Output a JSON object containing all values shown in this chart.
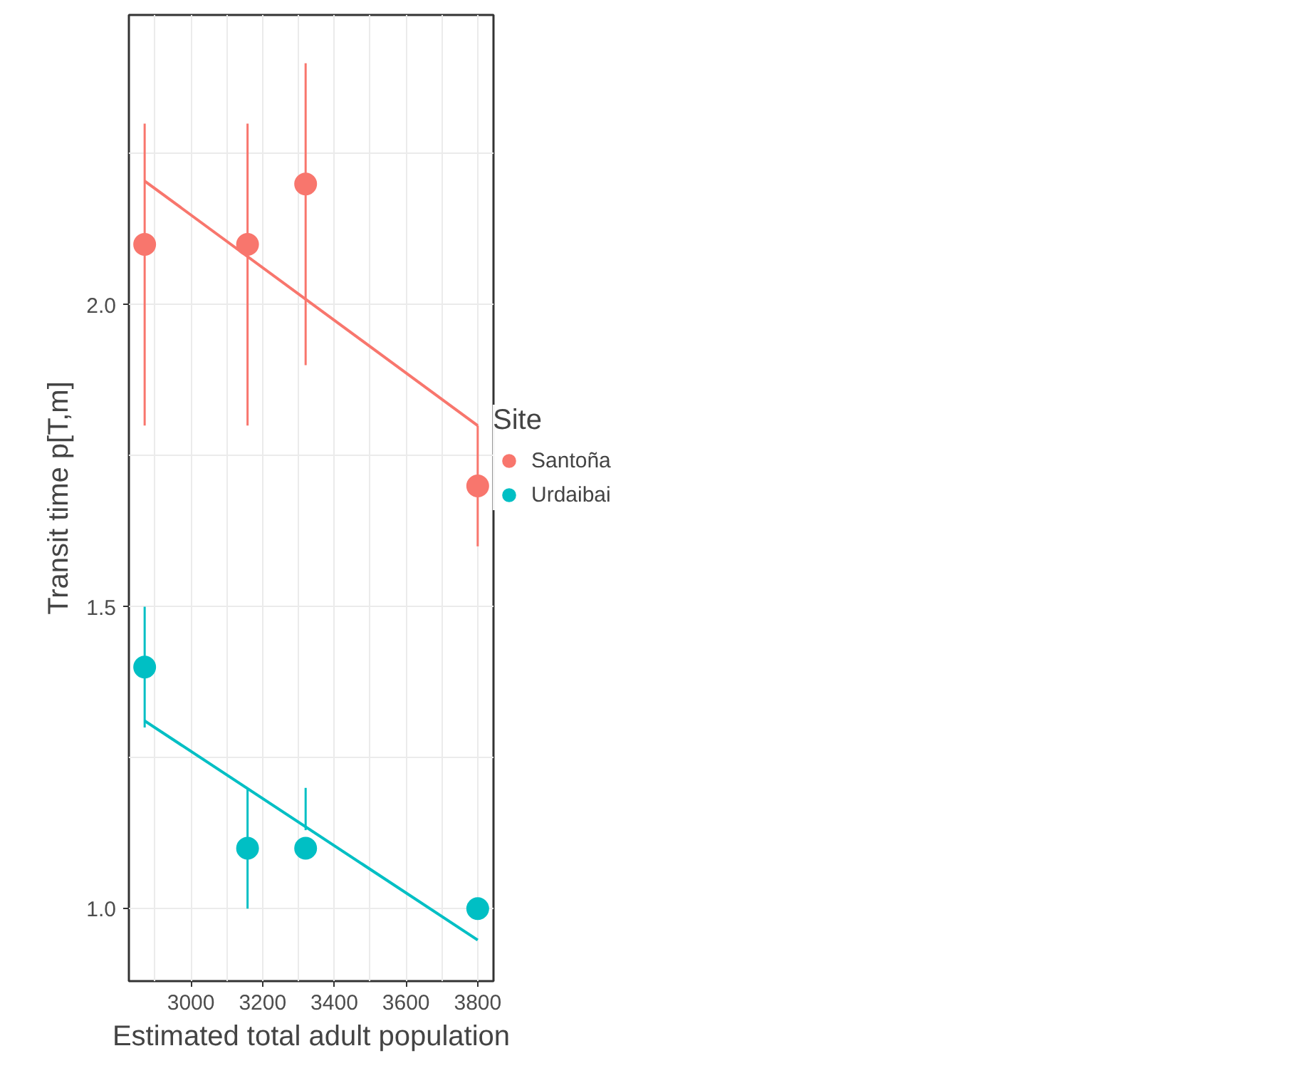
{
  "chart_data": {
    "type": "line",
    "xlabel": "Estimated total adult population",
    "ylabel": "Transit time p[T,m]",
    "legend_title": "Site",
    "legend": "right",
    "grid": true,
    "xlim": [
      2827,
      3844
    ],
    "ylim": [
      0.88,
      2.48
    ],
    "xticks": [
      3000,
      3200,
      3400,
      3600,
      3800
    ],
    "yticks": [
      {
        "value": 1.0,
        "label": "1.0"
      },
      {
        "value": 1.5,
        "label": "1.5"
      },
      {
        "value": 2.0,
        "label": "2.0"
      }
    ],
    "series": [
      {
        "name": "Santoña",
        "type": "scatter",
        "marker": "circle",
        "color": "#f8766d",
        "x": [
          2871,
          3158,
          3320,
          3800
        ],
        "values": [
          2.1,
          2.1,
          2.2,
          1.7
        ],
        "errors": [
          [
            1.8,
            2.3
          ],
          [
            1.8,
            2.3
          ],
          [
            1.9,
            2.4
          ],
          [
            1.6,
            1.8
          ]
        ]
      },
      {
        "name": "Urdaibai",
        "type": "scatter",
        "marker": "circle",
        "color": "#00bfc4",
        "x": [
          2871,
          3158,
          3320,
          3800
        ],
        "values": [
          1.4,
          1.1,
          1.1,
          1.0
        ],
        "errors": [
          [
            1.3,
            1.5
          ],
          [
            1.0,
            1.2
          ],
          [
            1.13,
            1.2
          ],
          null
        ]
      },
      {
        "color": "#f8766d",
        "x": [
          2871,
          3800
        ],
        "values": [
          2.205,
          1.8
        ]
      },
      {
        "color": "#00bfc4",
        "x": [
          2871,
          3800
        ],
        "values": [
          1.311,
          0.948
        ]
      }
    ]
  }
}
